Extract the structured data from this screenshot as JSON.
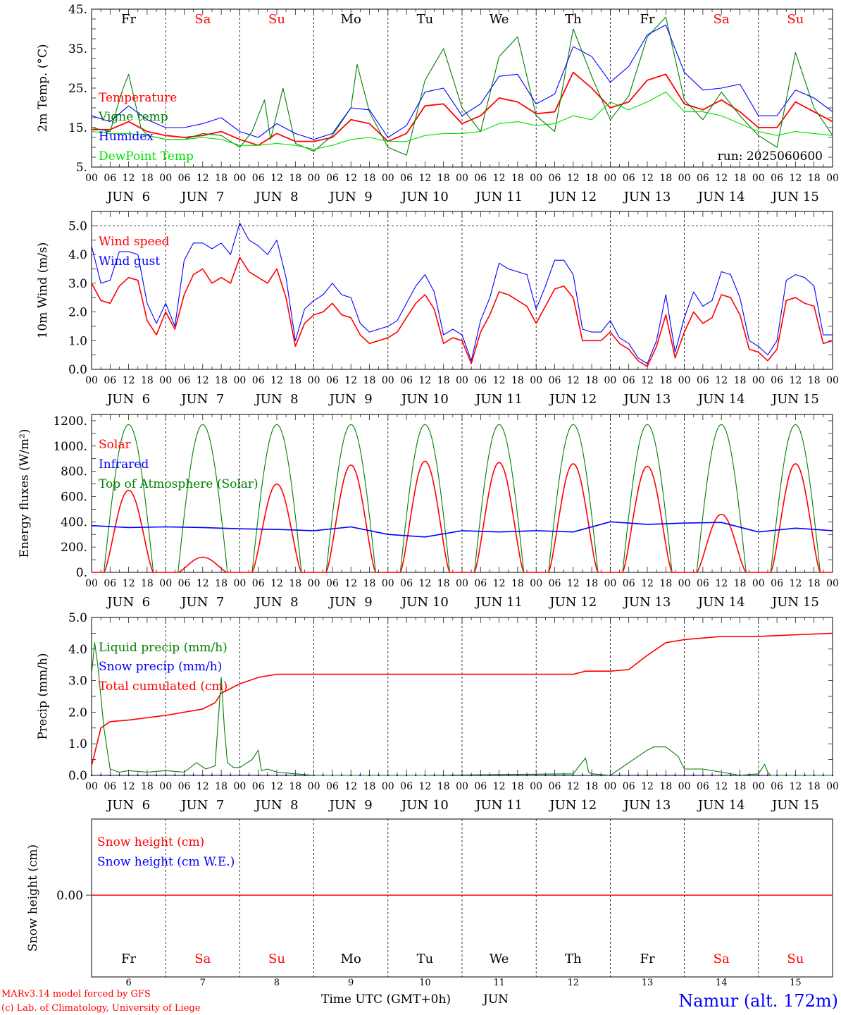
{
  "footer": {
    "model": "MARv3.14 model forced by GFS",
    "credit": "(c) Lab. of Climatology, University of Liege",
    "xlabel": "Time UTC (GMT+0h)",
    "month": "JUN",
    "station": "Namur (alt. 172m)"
  },
  "run_label": "run: 2025060600",
  "weekdays": [
    "Fr",
    "Sa",
    "Su",
    "Mo",
    "Tu",
    "We",
    "Th",
    "Fr",
    "Sa",
    "Su"
  ],
  "weekend_color": "#ff0000",
  "weekday_color": "#000000",
  "hour_ticks": [
    "00",
    "06",
    "12",
    "18"
  ],
  "date_labels": [
    "JUN  6",
    "JUN  7",
    "JUN  8",
    "JUN  9",
    "JUN 10",
    "JUN 11",
    "JUN 12",
    "JUN 13",
    "JUN 14",
    "JUN 15"
  ],
  "bottom_dates": [
    "6",
    "7",
    "8",
    "9",
    "10",
    "11",
    "12",
    "13",
    "14",
    "15"
  ],
  "colors": {
    "red": "#ff0000",
    "green": "#008000",
    "blue": "#0000ff",
    "lightgreen": "#00e000"
  },
  "chart_data": [
    {
      "type": "line",
      "ylabel": "2m Temp. (°C)",
      "ylim": [
        5,
        45
      ],
      "yticks": [
        "5.",
        "15.",
        "25.",
        "35.",
        "45."
      ],
      "x_unit": "hours since JUN 6 00 UTC",
      "legend": [
        "Temperature",
        "Vigne temp",
        "Humidex",
        "DewPoint Temp"
      ],
      "series": [
        {
          "name": "Temperature",
          "color": "red",
          "x": [
            0,
            6,
            12,
            18,
            24,
            30,
            36,
            42,
            48,
            54,
            60,
            66,
            72,
            78,
            84,
            90,
            96,
            102,
            108,
            114,
            120,
            126,
            132,
            138,
            144,
            150,
            156,
            162,
            168,
            174,
            180,
            186,
            192,
            198,
            204,
            210,
            216,
            222,
            228,
            234,
            240
          ],
          "y": [
            14.5,
            14.5,
            16.5,
            14.0,
            13.0,
            12.5,
            13.0,
            14.0,
            12.0,
            10.5,
            13.5,
            11.5,
            11.5,
            12.5,
            17.0,
            16.0,
            11.5,
            13.5,
            20.5,
            21.0,
            16.0,
            18.0,
            22.5,
            21.5,
            18.5,
            19.0,
            29.0,
            25.0,
            20.0,
            21.5,
            27.0,
            28.5,
            21.0,
            19.5,
            22.0,
            19.0,
            15.0,
            15.0,
            21.5,
            19.0,
            16.5
          ]
        },
        {
          "name": "Vigne temp",
          "color": "green",
          "x": [
            0,
            6,
            10,
            12,
            16,
            18,
            24,
            30,
            36,
            42,
            48,
            52,
            56,
            58,
            62,
            66,
            72,
            78,
            84,
            86,
            90,
            96,
            102,
            108,
            114,
            120,
            126,
            132,
            138,
            144,
            150,
            156,
            162,
            168,
            174,
            180,
            186,
            192,
            198,
            204,
            210,
            216,
            222,
            228,
            234,
            240
          ],
          "y": [
            15.0,
            14.0,
            24.5,
            28.5,
            15.0,
            13.0,
            12.0,
            12.0,
            13.5,
            13.0,
            10.0,
            14.0,
            22.0,
            12.0,
            25.0,
            11.0,
            9.0,
            13.0,
            20.0,
            31.0,
            19.0,
            10.0,
            8.0,
            27.0,
            35.0,
            20.0,
            14.0,
            33.0,
            38.0,
            18.0,
            14.0,
            40.0,
            28.0,
            17.0,
            23.0,
            38.0,
            43.0,
            22.0,
            17.0,
            24.0,
            18.0,
            13.0,
            10.0,
            34.0,
            20.0,
            13.0
          ]
        },
        {
          "name": "Humidex",
          "color": "blue",
          "x": [
            0,
            6,
            12,
            18,
            24,
            30,
            36,
            42,
            48,
            54,
            60,
            66,
            72,
            78,
            84,
            90,
            96,
            102,
            108,
            114,
            120,
            126,
            132,
            138,
            144,
            150,
            156,
            162,
            168,
            174,
            180,
            186,
            192,
            198,
            204,
            210,
            216,
            222,
            228,
            234,
            240
          ],
          "y": [
            18.0,
            16.5,
            20.5,
            17.0,
            15.0,
            15.0,
            16.0,
            17.5,
            14.0,
            12.5,
            16.0,
            13.5,
            12.0,
            13.5,
            20.0,
            19.5,
            12.5,
            15.5,
            24.0,
            25.0,
            18.0,
            21.0,
            28.0,
            28.5,
            21.0,
            23.5,
            35.5,
            33.0,
            26.5,
            30.5,
            38.5,
            41.0,
            29.0,
            24.5,
            25.0,
            26.0,
            18.0,
            18.0,
            24.5,
            22.5,
            19.0
          ]
        },
        {
          "name": "DewPoint Temp",
          "color": "lightgreen",
          "x": [
            0,
            6,
            12,
            18,
            24,
            30,
            36,
            42,
            48,
            54,
            60,
            66,
            72,
            78,
            84,
            90,
            96,
            102,
            108,
            114,
            120,
            126,
            132,
            138,
            144,
            150,
            156,
            162,
            168,
            174,
            180,
            186,
            192,
            198,
            204,
            210,
            216,
            222,
            228,
            234,
            240
          ],
          "y": [
            14.0,
            13.5,
            13.5,
            13.0,
            12.0,
            12.0,
            12.5,
            12.0,
            10.5,
            10.5,
            11.0,
            10.5,
            9.5,
            10.5,
            12.0,
            12.5,
            11.5,
            11.5,
            13.0,
            13.5,
            13.5,
            14.0,
            16.0,
            16.5,
            15.5,
            16.0,
            18.0,
            17.0,
            21.5,
            19.5,
            21.5,
            24.0,
            19.0,
            19.0,
            18.0,
            16.0,
            14.0,
            13.0,
            14.0,
            13.5,
            13.0
          ]
        }
      ]
    },
    {
      "type": "line",
      "ylabel": "10m Wind (m/s)",
      "ylim": [
        0,
        5.5
      ],
      "yticks": [
        "0.0",
        "1.0",
        "2.0",
        "3.0",
        "4.0",
        "5.0"
      ],
      "legend": [
        "Wind speed",
        "Wind gust"
      ],
      "series": [
        {
          "name": "Wind speed",
          "color": "red",
          "x": [
            0,
            3,
            6,
            9,
            12,
            15,
            18,
            21,
            24,
            27,
            30,
            33,
            36,
            39,
            42,
            45,
            48,
            51,
            54,
            57,
            60,
            63,
            66,
            69,
            72,
            75,
            78,
            81,
            84,
            87,
            90,
            93,
            96,
            99,
            102,
            105,
            108,
            111,
            114,
            117,
            120,
            123,
            126,
            129,
            132,
            135,
            138,
            141,
            144,
            147,
            150,
            153,
            156,
            159,
            162,
            165,
            168,
            171,
            174,
            177,
            180,
            183,
            186,
            189,
            192,
            195,
            198,
            201,
            204,
            207,
            210,
            213,
            216,
            219,
            222,
            225,
            228,
            231,
            234,
            237,
            240
          ],
          "y": [
            3.0,
            2.4,
            2.3,
            2.9,
            3.2,
            3.1,
            1.7,
            1.2,
            2.0,
            1.4,
            2.6,
            3.3,
            3.5,
            3.0,
            3.2,
            3.0,
            3.9,
            3.4,
            3.2,
            3.0,
            3.5,
            2.5,
            0.8,
            1.6,
            1.9,
            2.0,
            2.3,
            1.9,
            1.8,
            1.2,
            0.9,
            1.0,
            1.1,
            1.3,
            1.8,
            2.3,
            2.6,
            2.1,
            0.9,
            1.1,
            1.0,
            0.2,
            1.3,
            1.9,
            2.7,
            2.6,
            2.4,
            2.2,
            1.6,
            2.2,
            2.8,
            2.9,
            2.5,
            1.0,
            1.0,
            1.0,
            1.3,
            0.9,
            0.7,
            0.3,
            0.1,
            0.8,
            1.9,
            0.4,
            1.3,
            2.0,
            1.6,
            1.8,
            2.6,
            2.5,
            1.9,
            0.7,
            0.6,
            0.3,
            0.7,
            2.4,
            2.5,
            2.3,
            2.2,
            0.9,
            1.0
          ]
        },
        {
          "name": "Wind gust",
          "color": "blue",
          "x": [
            0,
            3,
            6,
            9,
            12,
            15,
            18,
            21,
            24,
            27,
            30,
            33,
            36,
            39,
            42,
            45,
            48,
            51,
            54,
            57,
            60,
            63,
            66,
            69,
            72,
            75,
            78,
            81,
            84,
            87,
            90,
            93,
            96,
            99,
            102,
            105,
            108,
            111,
            114,
            117,
            120,
            123,
            126,
            129,
            132,
            135,
            138,
            141,
            144,
            147,
            150,
            153,
            156,
            159,
            162,
            165,
            168,
            171,
            174,
            177,
            180,
            183,
            186,
            189,
            192,
            195,
            198,
            201,
            204,
            207,
            210,
            213,
            216,
            219,
            222,
            225,
            228,
            231,
            234,
            237,
            240
          ],
          "y": [
            4.3,
            3.0,
            3.1,
            4.1,
            4.1,
            4.0,
            2.3,
            1.6,
            2.3,
            1.5,
            3.8,
            4.4,
            4.4,
            4.2,
            4.4,
            4.0,
            5.1,
            4.5,
            4.3,
            4.0,
            4.5,
            3.2,
            1.0,
            2.1,
            2.4,
            2.6,
            3.0,
            2.6,
            2.5,
            1.6,
            1.3,
            1.4,
            1.5,
            1.7,
            2.3,
            2.9,
            3.3,
            2.7,
            1.2,
            1.4,
            1.2,
            0.3,
            1.7,
            2.5,
            3.7,
            3.5,
            3.4,
            3.3,
            2.1,
            2.9,
            3.8,
            3.8,
            3.3,
            1.4,
            1.3,
            1.3,
            1.7,
            1.1,
            0.9,
            0.4,
            0.2,
            1.0,
            2.6,
            0.6,
            1.8,
            2.7,
            2.2,
            2.4,
            3.4,
            3.3,
            2.5,
            1.0,
            0.8,
            0.5,
            1.0,
            3.1,
            3.3,
            3.2,
            2.9,
            1.2,
            1.2
          ]
        }
      ]
    },
    {
      "type": "line",
      "ylabel": "Energy fluxes (W/m²)",
      "ylim": [
        0,
        1250
      ],
      "yticks": [
        "0.",
        "200.",
        "400.",
        "600.",
        "800.",
        "1000.",
        "1200."
      ],
      "legend": [
        "Solar",
        "Infrared",
        "Top of Atmosphere (Solar)"
      ],
      "toa_peak": 1170,
      "solar_peaks": [
        650,
        120,
        700,
        850,
        880,
        870,
        860,
        840,
        460,
        860
      ],
      "infrared": {
        "name": "Infrared",
        "color": "blue",
        "x": [
          0,
          12,
          24,
          36,
          48,
          60,
          72,
          84,
          96,
          108,
          120,
          132,
          144,
          156,
          168,
          180,
          192,
          204,
          216,
          228,
          240
        ],
        "y": [
          370,
          355,
          360,
          355,
          345,
          340,
          330,
          360,
          300,
          280,
          330,
          320,
          330,
          320,
          400,
          380,
          390,
          395,
          320,
          350,
          330
        ]
      }
    },
    {
      "type": "line",
      "ylabel": "Precip (mm/h)",
      "ylim": [
        0,
        5.0
      ],
      "yticks": [
        "0.0",
        "1.0",
        "2.0",
        "3.0",
        "4.0",
        "5.0"
      ],
      "legend": [
        "Liquid precip (mm/h)",
        "Snow precip (mm/h)",
        "Total cumulated (cm)"
      ],
      "series": [
        {
          "name": "Total cumulated (cm)",
          "color": "red",
          "x": [
            0,
            3,
            6,
            12,
            24,
            36,
            40,
            42,
            48,
            54,
            60,
            72,
            96,
            120,
            144,
            156,
            160,
            168,
            174,
            180,
            186,
            192,
            204,
            216,
            228,
            240
          ],
          "y": [
            0.3,
            1.5,
            1.7,
            1.75,
            1.9,
            2.1,
            2.3,
            2.6,
            2.9,
            3.1,
            3.2,
            3.2,
            3.2,
            3.2,
            3.2,
            3.2,
            3.3,
            3.3,
            3.35,
            3.8,
            4.2,
            4.3,
            4.4,
            4.4,
            4.45,
            4.5
          ]
        },
        {
          "name": "Liquid precip (mm/h)",
          "color": "green",
          "x": [
            0,
            1,
            2,
            4,
            6,
            9,
            12,
            18,
            24,
            30,
            34,
            37,
            40,
            42,
            43,
            44,
            46,
            48,
            52,
            54,
            55,
            57,
            60,
            66,
            72,
            84,
            96,
            108,
            156,
            160,
            161,
            162,
            168,
            180,
            182,
            186,
            190,
            192,
            198,
            204,
            210,
            216,
            218,
            219,
            220,
            228,
            234,
            240
          ],
          "y": [
            3.2,
            4.2,
            3.5,
            1.5,
            0.2,
            0.1,
            0.15,
            0.1,
            0.15,
            0.1,
            0.4,
            0.2,
            0.3,
            3.1,
            1.5,
            0.4,
            0.25,
            0.25,
            0.5,
            0.8,
            0.15,
            0.2,
            0.1,
            0.05,
            0.0,
            0.0,
            0.0,
            0.0,
            0.05,
            0.55,
            0.1,
            0.05,
            0.0,
            0.8,
            0.9,
            0.9,
            0.6,
            0.2,
            0.2,
            0.1,
            0.0,
            0.05,
            0.35,
            0.1,
            0.0,
            0.0,
            0.0,
            0.0
          ]
        }
      ]
    },
    {
      "type": "line",
      "ylabel": "Snow height (cm)",
      "yticks": [
        "0.00"
      ],
      "legend": [
        "Snow height (cm)",
        "Snow height (cm W.E.)"
      ],
      "series": [
        {
          "name": "Snow height (cm)",
          "color": "red",
          "x": [
            0,
            240
          ],
          "y": [
            0,
            0
          ]
        }
      ]
    }
  ]
}
